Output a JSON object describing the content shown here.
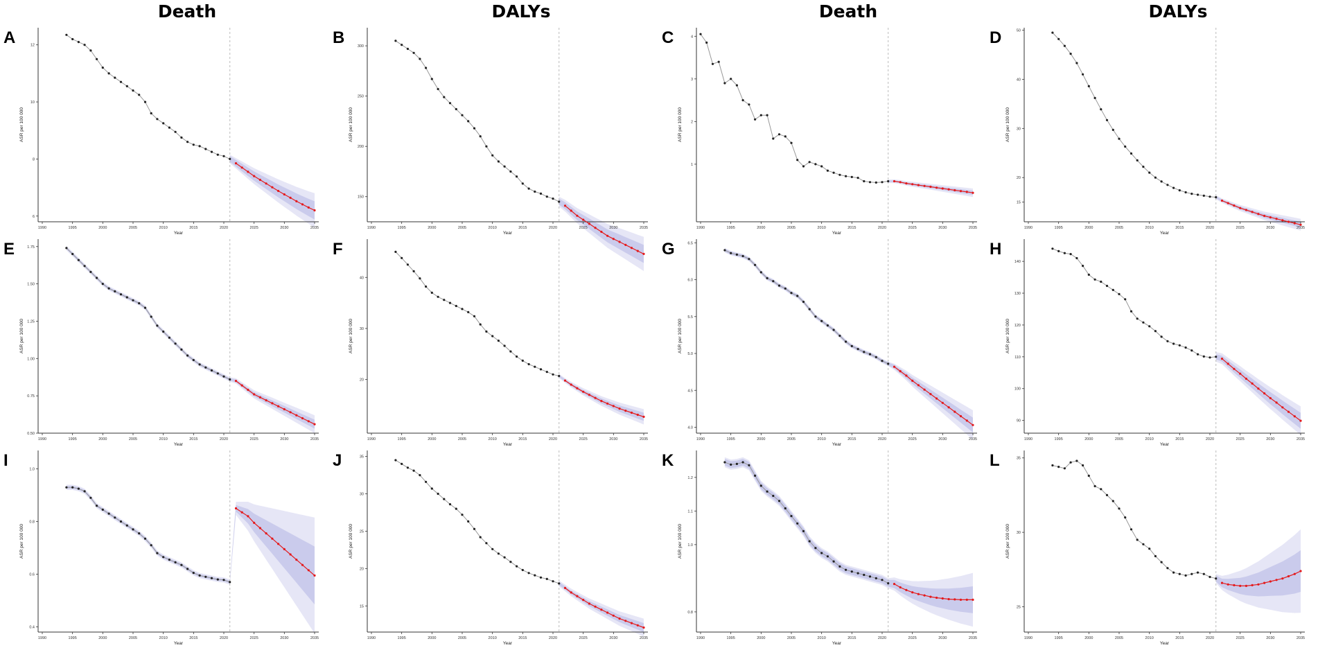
{
  "figure": {
    "column_titles": [
      "Death",
      "DALYs",
      "Death",
      "DALYs"
    ],
    "colors": {
      "observed": "#222222",
      "observed_line": "#999999",
      "predicted": "#e41a1c",
      "band": "#8c8fd4",
      "vline": "#bbbbbb"
    }
  },
  "chart_data": [
    {
      "type": "line",
      "panel": "A",
      "xlabel": "Year",
      "ylabel": "ASR per 100 000",
      "xlim": [
        1990,
        2035
      ],
      "ylim": [
        5.8,
        12.6
      ],
      "yticks": [
        6,
        8,
        10,
        12
      ],
      "ytick_labels": [
        "6",
        "8",
        "10",
        "12"
      ],
      "xticks": [
        1990,
        1995,
        2000,
        2005,
        2010,
        2015,
        2020,
        2025,
        2030,
        2035
      ],
      "split_year": 2021,
      "band_from": 2021,
      "observed": [
        12.35,
        12.2,
        12.1,
        12.0,
        11.8,
        11.5,
        11.2,
        11.0,
        10.85,
        10.7,
        10.55,
        10.4,
        10.25,
        10.0,
        9.6,
        9.4,
        9.25,
        9.1,
        8.95,
        8.75,
        8.6,
        8.5,
        8.45,
        8.35,
        8.25,
        8.15,
        8.1,
        8.0
      ],
      "predicted": [
        7.85,
        7.7,
        7.55,
        7.4,
        7.27,
        7.14,
        7.01,
        6.88,
        6.76,
        6.64,
        6.52,
        6.41,
        6.3,
        6.2
      ],
      "band_width": {
        "inner": [
          0.1,
          0.32
        ],
        "outer": [
          0.15,
          0.6
        ]
      }
    },
    {
      "type": "line",
      "panel": "B",
      "xlabel": "Year",
      "ylabel": "ASR per 100 000",
      "xlim": [
        1990,
        2035
      ],
      "ylim": [
        125,
        318
      ],
      "yticks": [
        150,
        200,
        250,
        300
      ],
      "ytick_labels": [
        "150",
        "200",
        "250",
        "300"
      ],
      "xticks": [
        1990,
        1995,
        2000,
        2005,
        2010,
        2015,
        2020,
        2025,
        2030,
        2035
      ],
      "split_year": 2021,
      "band_from": 2021,
      "observed": [
        305,
        301,
        297,
        293,
        287,
        278,
        267,
        257,
        249,
        243,
        237,
        231,
        225,
        218,
        210,
        200,
        191,
        185,
        180,
        175,
        170,
        163,
        158,
        155,
        153,
        150,
        148,
        145
      ],
      "predicted": [
        141,
        136,
        131,
        127,
        123,
        119,
        115,
        111,
        108,
        105,
        102,
        99,
        96,
        93
      ],
      "band_width": {
        "inner": [
          3,
          9
        ],
        "outer": [
          5,
          17
        ]
      }
    },
    {
      "type": "line",
      "panel": "C",
      "xlabel": "Year",
      "ylabel": "ASR per 100 000",
      "xlim": [
        1990,
        2035
      ],
      "ylim": [
        -0.35,
        4.2
      ],
      "yticks": [
        1,
        2,
        3,
        4
      ],
      "ytick_labels": [
        "1",
        "2",
        "3",
        "4"
      ],
      "xticks": [
        1990,
        1995,
        2000,
        2005,
        2010,
        2015,
        2020,
        2025,
        2030,
        2035
      ],
      "split_year": 2021,
      "band_from": 2021,
      "observed": [
        4.05,
        3.85,
        3.35,
        3.4,
        2.9,
        3.0,
        2.85,
        2.5,
        2.4,
        2.05,
        2.15,
        2.15,
        1.6,
        1.7,
        1.65,
        1.5,
        1.1,
        0.95,
        1.05,
        1.0,
        0.95,
        0.85,
        0.8,
        0.75,
        0.72,
        0.7,
        0.68,
        0.6,
        0.58,
        0.57,
        0.58,
        0.6
      ],
      "predicted": [
        0.6,
        0.58,
        0.55,
        0.53,
        0.51,
        0.49,
        0.47,
        0.45,
        0.43,
        0.41,
        0.39,
        0.37,
        0.35,
        0.33
      ],
      "band_width": {
        "inner": [
          0.02,
          0.05
        ],
        "outer": [
          0.04,
          0.1
        ]
      }
    },
    {
      "type": "line",
      "panel": "D",
      "xlabel": "Year",
      "ylabel": "ASR per 100 000",
      "xlim": [
        1990,
        2035
      ],
      "ylim": [
        11,
        50.5
      ],
      "yticks": [
        15,
        20,
        30,
        40,
        50
      ],
      "ytick_labels": [
        "15",
        "20",
        "30",
        "40",
        "50"
      ],
      "xticks": [
        1990,
        1995,
        2000,
        2005,
        2010,
        2015,
        2020,
        2025,
        2030,
        2035
      ],
      "split_year": 2021,
      "band_from": 2021,
      "observed": [
        49.5,
        48.2,
        46.8,
        45.2,
        43.3,
        41.0,
        38.6,
        36.2,
        33.9,
        31.7,
        29.7,
        27.9,
        26.3,
        24.9,
        23.5,
        22.2,
        21.0,
        20.0,
        19.2,
        18.5,
        17.9,
        17.4,
        17.0,
        16.7,
        16.5,
        16.3,
        16.1,
        16.0
      ],
      "predicted": [
        15.3,
        14.8,
        14.3,
        13.8,
        13.4,
        13.0,
        12.6,
        12.2,
        11.9,
        11.6,
        11.3,
        11.0,
        10.7,
        10.4
      ],
      "band_width": {
        "inner": [
          0.2,
          0.6
        ],
        "outer": [
          0.4,
          1.2
        ]
      }
    },
    {
      "type": "line",
      "panel": "E",
      "xlabel": "Year",
      "ylabel": "ASR per 100 000",
      "xlim": [
        1990,
        2035
      ],
      "ylim": [
        0.5,
        1.8
      ],
      "yticks": [
        0.5,
        0.75,
        1.0,
        1.25,
        1.5,
        1.75
      ],
      "ytick_labels": [
        "0.50",
        "0.75",
        "1.00",
        "1.25",
        "1.50",
        "1.75"
      ],
      "xticks": [
        1990,
        1995,
        2000,
        2005,
        2010,
        2015,
        2020,
        2025,
        2030,
        2035
      ],
      "split_year": 2021,
      "band_from": 1990,
      "observed": [
        1.74,
        1.7,
        1.66,
        1.62,
        1.58,
        1.54,
        1.5,
        1.47,
        1.45,
        1.43,
        1.41,
        1.39,
        1.37,
        1.34,
        1.28,
        1.22,
        1.18,
        1.14,
        1.1,
        1.06,
        1.02,
        0.99,
        0.96,
        0.94,
        0.92,
        0.9,
        0.88,
        0.86
      ],
      "predicted": [
        0.85,
        0.82,
        0.79,
        0.76,
        0.74,
        0.72,
        0.7,
        0.68,
        0.66,
        0.64,
        0.62,
        0.6,
        0.58,
        0.56
      ],
      "band_width": {
        "inner": [
          0.008,
          0.03
        ],
        "outer": [
          0.015,
          0.06
        ]
      }
    },
    {
      "type": "line",
      "panel": "F",
      "xlabel": "Year",
      "ylabel": "ASR per 100 000",
      "xlim": [
        1990,
        2035
      ],
      "ylim": [
        9.5,
        47.5
      ],
      "yticks": [
        20,
        30,
        40
      ],
      "ytick_labels": [
        "20",
        "30",
        "40"
      ],
      "xticks": [
        1990,
        1995,
        2000,
        2005,
        2010,
        2015,
        2020,
        2025,
        2030,
        2035
      ],
      "split_year": 2021,
      "band_from": 2021,
      "observed": [
        45,
        43.8,
        42.5,
        41.2,
        39.8,
        38.2,
        37.0,
        36.2,
        35.6,
        35.0,
        34.4,
        33.8,
        33.2,
        32.4,
        30.8,
        29.4,
        28.5,
        27.6,
        26.6,
        25.5,
        24.5,
        23.7,
        23.0,
        22.5,
        22.0,
        21.5,
        21.0,
        20.7
      ],
      "predicted": [
        19.8,
        19.0,
        18.3,
        17.6,
        17.0,
        16.4,
        15.8,
        15.3,
        14.8,
        14.3,
        13.9,
        13.5,
        13.1,
        12.7
      ],
      "band_width": {
        "inner": [
          0.2,
          0.8
        ],
        "outer": [
          0.4,
          1.5
        ]
      }
    },
    {
      "type": "line",
      "panel": "G",
      "xlabel": "Year",
      "ylabel": "ASR per 100 000",
      "xlim": [
        1990,
        2035
      ],
      "ylim": [
        3.92,
        6.55
      ],
      "yticks": [
        4.0,
        4.5,
        5.0,
        5.5,
        6.0,
        6.5
      ],
      "ytick_labels": [
        "4.0",
        "4.5",
        "5.0",
        "5.5",
        "6.0",
        "6.5"
      ],
      "xticks": [
        1990,
        1995,
        2000,
        2005,
        2010,
        2015,
        2020,
        2025,
        2030,
        2035
      ],
      "split_year": 2021,
      "band_from": 1990,
      "observed": [
        6.4,
        6.36,
        6.34,
        6.32,
        6.28,
        6.2,
        6.1,
        6.02,
        5.98,
        5.92,
        5.88,
        5.82,
        5.78,
        5.7,
        5.6,
        5.5,
        5.44,
        5.38,
        5.32,
        5.24,
        5.16,
        5.1,
        5.06,
        5.02,
        4.99,
        4.95,
        4.9,
        4.86
      ],
      "predicted": [
        4.82,
        4.76,
        4.7,
        4.63,
        4.57,
        4.51,
        4.45,
        4.39,
        4.33,
        4.27,
        4.21,
        4.15,
        4.09,
        4.03
      ],
      "band_width": {
        "inner": [
          0.02,
          0.1
        ],
        "outer": [
          0.03,
          0.2
        ]
      }
    },
    {
      "type": "line",
      "panel": "H",
      "xlabel": "Year",
      "ylabel": "ASR per 100 000",
      "xlim": [
        1990,
        2035
      ],
      "ylim": [
        86,
        147
      ],
      "yticks": [
        90,
        100,
        110,
        120,
        130,
        140
      ],
      "ytick_labels": [
        "90",
        "100",
        "110",
        "120",
        "130",
        "140"
      ],
      "xticks": [
        1990,
        1995,
        2000,
        2005,
        2010,
        2015,
        2020,
        2025,
        2030,
        2035
      ],
      "split_year": 2021,
      "band_from": 2021,
      "observed": [
        144,
        143.2,
        142.6,
        142.3,
        141,
        138.6,
        135.8,
        134.3,
        133.6,
        132.3,
        131,
        129.7,
        128.1,
        124.3,
        122,
        120.8,
        119.6,
        118.1,
        116.3,
        114.9,
        114.1,
        113.6,
        112.9,
        112.0,
        110.8,
        110.1,
        109.8,
        110.0
      ],
      "predicted": [
        109.4,
        107.8,
        106.2,
        104.7,
        103.1,
        101.6,
        100.0,
        98.5,
        97.0,
        95.6,
        94.1,
        92.7,
        91.3,
        89.9
      ],
      "band_width": {
        "inner": [
          0.8,
          2.5
        ],
        "outer": [
          1.5,
          4.5
        ]
      }
    },
    {
      "type": "line",
      "panel": "I",
      "xlabel": "Year",
      "ylabel": "ASR per 100 000",
      "xlim": [
        1990,
        2035
      ],
      "ylim": [
        0.38,
        1.07
      ],
      "yticks": [
        0.4,
        0.6,
        0.8,
        1.0
      ],
      "ytick_labels": [
        "0.4",
        "0.6",
        "0.8",
        "1.0"
      ],
      "xticks": [
        1990,
        1995,
        2000,
        2005,
        2010,
        2015,
        2020,
        2025,
        2030,
        2035
      ],
      "split_year": 2021,
      "band_from": 1990,
      "observed": [
        0.93,
        0.93,
        0.925,
        0.915,
        0.89,
        0.86,
        0.845,
        0.83,
        0.815,
        0.8,
        0.785,
        0.77,
        0.755,
        0.735,
        0.71,
        0.68,
        0.665,
        0.655,
        0.645,
        0.635,
        0.62,
        0.605,
        0.595,
        0.59,
        0.585,
        0.58,
        0.578,
        0.57
      ],
      "predicted": [
        0.85,
        0.835,
        0.82,
        0.795,
        0.775,
        0.755,
        0.735,
        0.715,
        0.695,
        0.675,
        0.655,
        0.635,
        0.615,
        0.595
      ],
      "band_width": {
        "inner": [
          0.005,
          0.11
        ],
        "outer": [
          0.01,
          0.22
        ]
      }
    },
    {
      "type": "line",
      "panel": "J",
      "xlabel": "Year",
      "ylabel": "ASR per 100 000",
      "xlim": [
        1990,
        2035
      ],
      "ylim": [
        11.5,
        35.8
      ],
      "yticks": [
        15,
        20,
        25,
        30,
        35
      ],
      "ytick_labels": [
        "15",
        "20",
        "25",
        "30",
        "35"
      ],
      "xticks": [
        1990,
        1995,
        2000,
        2005,
        2010,
        2015,
        2020,
        2025,
        2030,
        2035
      ],
      "split_year": 2021,
      "band_from": 2021,
      "observed": [
        34.5,
        34.0,
        33.5,
        33.1,
        32.5,
        31.6,
        30.7,
        30.0,
        29.3,
        28.6,
        28.0,
        27.2,
        26.3,
        25.3,
        24.2,
        23.4,
        22.6,
        22.0,
        21.5,
        20.9,
        20.3,
        19.8,
        19.4,
        19.1,
        18.8,
        18.6,
        18.3,
        18.0
      ],
      "predicted": [
        17.4,
        16.8,
        16.3,
        15.8,
        15.3,
        14.9,
        14.5,
        14.1,
        13.7,
        13.3,
        13.0,
        12.7,
        12.4,
        12.1
      ],
      "band_width": {
        "inner": [
          0.2,
          0.6
        ],
        "outer": [
          0.4,
          1.2
        ]
      }
    },
    {
      "type": "line",
      "panel": "K",
      "xlabel": "Year",
      "ylabel": "ASR per 100 000",
      "xlim": [
        1990,
        2035
      ],
      "ylim": [
        0.74,
        1.28
      ],
      "yticks": [
        0.8,
        1.0,
        1.1,
        1.2
      ],
      "ytick_labels": [
        "0.8",
        "1.0",
        "1.1",
        "1.2"
      ],
      "xticks": [
        1990,
        1995,
        2000,
        2005,
        2010,
        2015,
        2020,
        2025,
        2030,
        2035
      ],
      "split_year": 2021,
      "band_from": 1990,
      "observed": [
        1.245,
        1.238,
        1.24,
        1.245,
        1.236,
        1.205,
        1.175,
        1.158,
        1.145,
        1.13,
        1.108,
        1.085,
        1.063,
        1.04,
        1.01,
        0.99,
        0.975,
        0.965,
        0.95,
        0.935,
        0.925,
        0.92,
        0.915,
        0.91,
        0.905,
        0.9,
        0.895,
        0.885
      ],
      "predicted": [
        0.883,
        0.873,
        0.865,
        0.858,
        0.853,
        0.849,
        0.845,
        0.842,
        0.84,
        0.838,
        0.837,
        0.836,
        0.836,
        0.836
      ],
      "band_width": {
        "inner": [
          0.01,
          0.04
        ],
        "outer": [
          0.015,
          0.08
        ]
      }
    },
    {
      "type": "line",
      "panel": "L",
      "xlabel": "Year",
      "ylabel": "ASR per 100 000",
      "xlim": [
        1990,
        2035
      ],
      "ylim": [
        23.3,
        35.5
      ],
      "yticks": [
        25,
        30,
        35
      ],
      "ytick_labels": [
        "25",
        "30",
        "35"
      ],
      "xticks": [
        1990,
        1995,
        2000,
        2005,
        2010,
        2015,
        2020,
        2025,
        2030,
        2035
      ],
      "split_year": 2021,
      "band_from": 2021,
      "observed": [
        34.5,
        34.4,
        34.3,
        34.7,
        34.8,
        34.5,
        33.8,
        33.1,
        32.9,
        32.5,
        32.1,
        31.6,
        31.0,
        30.2,
        29.5,
        29.2,
        28.9,
        28.4,
        28.0,
        27.6,
        27.3,
        27.2,
        27.1,
        27.2,
        27.3,
        27.2,
        27.0,
        26.9
      ],
      "predicted": [
        26.6,
        26.5,
        26.45,
        26.4,
        26.4,
        26.45,
        26.5,
        26.6,
        26.7,
        26.8,
        26.9,
        27.05,
        27.2,
        27.4
      ],
      "band_width": {
        "inner": [
          0.2,
          1.4
        ],
        "outer": [
          0.3,
          2.8
        ]
      }
    }
  ]
}
